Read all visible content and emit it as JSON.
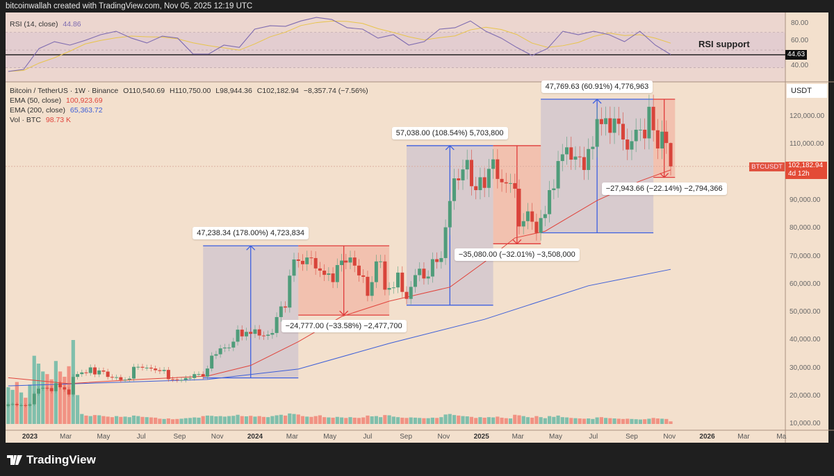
{
  "header": {
    "text": "bitcoinwallah created with TradingView.com, Nov 05, 2025 12:19 UTC"
  },
  "rsi": {
    "label": "RSI (14, close)",
    "value": "44.86",
    "support_label": "RSI support",
    "support_level": 44.63,
    "support_tag": "44.63",
    "axis_ticks": [
      "80.00",
      "60.00",
      "40.00"
    ],
    "axis_values": [
      80,
      60,
      40
    ],
    "color": "#7e6bb0",
    "ma_color": "#e8c44a",
    "values": [
      25.7,
      28,
      51.7,
      59.5,
      55.6,
      61,
      67.4,
      71.3,
      63.5,
      58,
      65.8,
      63.5,
      45.4,
      45.4,
      55.6,
      53,
      73.7,
      77.6,
      76.9,
      83,
      87,
      84.7,
      75.3,
      73.7,
      63.5,
      67.4,
      55.6,
      59.5,
      73.7,
      75.3,
      83,
      71.3,
      63.5,
      53,
      43.8,
      51.7,
      71.3,
      67.4,
      71.3,
      67.4,
      59.5,
      71.3,
      55.6,
      44.86
    ]
  },
  "legend": {
    "symbol": "Bitcoin / TetherUS · 1W · Binance",
    "open": "O110,540.69",
    "high": "H110,750.00",
    "low": "L98,944.36",
    "close": "C102,182.94",
    "change": "−8,357.74 (−7.56%)",
    "ema50_label": "EMA (50, close)",
    "ema50_value": "100,923.69",
    "ema200_label": "EMA (200, close)",
    "ema200_value": "65,363.72",
    "vol_label": "Vol · BTC",
    "vol_value": "98.73 K"
  },
  "price_axis": {
    "currency": "USDT",
    "symbol_tag": "BTCUSDT",
    "last_price": "102,182.94",
    "countdown": "4d 12h",
    "ticks": [
      "120,000.00",
      "110,000.00",
      "90,000.00",
      "80,000.00",
      "70,000.00",
      "60,000.00",
      "50,000.00",
      "40,000.00",
      "30,000.00",
      "20,000.00",
      "10,000.00"
    ],
    "tick_values": [
      120000,
      110000,
      90000,
      80000,
      70000,
      60000,
      50000,
      40000,
      30000,
      20000,
      10000
    ]
  },
  "colors": {
    "up": "#4f9c7a",
    "down": "#d8443a",
    "ema50": "#e0443c",
    "ema200": "#3c5ed8",
    "measure_up": "#3d5fe0",
    "measure_down": "#e03a3a",
    "background": "#f3e0cd"
  },
  "chart_data": {
    "type": "candlestick",
    "interval": "1W",
    "first_week": "2022-11-28",
    "first_open": 16450,
    "last_candle": {
      "open": 110540.69,
      "high": 110750.0,
      "low": 98944.36,
      "close": 102182.94
    },
    "close": [
      17100,
      17200,
      16800,
      16800,
      16600,
      17100,
      20900,
      22700,
      23000,
      22900,
      21800,
      24600,
      23200,
      22400,
      20600,
      26900,
      27900,
      28500,
      28300,
      30300,
      27800,
      29200,
      28800,
      26900,
      26700,
      26800,
      25800,
      25900,
      26300,
      30500,
      30500,
      30200,
      30200,
      29900,
      29300,
      29000,
      29400,
      26100,
      26000,
      25800,
      25800,
      26500,
      26500,
      27900,
      27900,
      27000,
      29900,
      34500,
      35000,
      37100,
      37400,
      37400,
      39500,
      43800,
      41400,
      43000,
      42300,
      43900,
      41700,
      41600,
      42000,
      42600,
      48300,
      52100,
      51700,
      63100,
      68900,
      68400,
      67200,
      69600,
      69400,
      65700,
      64900,
      63400,
      63900,
      60800,
      66900,
      68500,
      67800,
      69600,
      66700,
      63200,
      62700,
      55900,
      60800,
      68200,
      68200,
      58100,
      58700,
      58900,
      64200,
      57300,
      54800,
      59100,
      63300,
      65600,
      62100,
      62800,
      69000,
      68000,
      69400,
      80400,
      89800,
      97900,
      97200,
      101100,
      104500,
      95100,
      93700,
      98300,
      94500,
      101300,
      104700,
      97700,
      96500,
      96100,
      96200,
      94200,
      80700,
      82600,
      86100,
      82400,
      78400,
      83700,
      85100,
      93700,
      94300,
      104100,
      106500,
      109000,
      104600,
      105700,
      105500,
      100900,
      108400,
      109200,
      119100,
      117300,
      119400,
      114200,
      119300,
      117400,
      111800,
      108200,
      111200,
      115300,
      115300,
      112200,
      123500,
      115100,
      108600,
      114600,
      110540.69,
      102182.94
    ],
    "volume_k": [
      1400,
      1300,
      1600,
      1200,
      1000,
      1500,
      2600,
      2300,
      2000,
      1900,
      1700,
      2400,
      2000,
      1800,
      2200,
      3200,
      1100,
      380,
      320,
      300,
      340,
      330,
      300,
      280,
      260,
      300,
      270,
      280,
      260,
      320,
      300,
      270,
      260,
      250,
      240,
      200,
      190,
      210,
      180,
      190,
      200,
      220,
      230,
      250,
      240,
      300,
      320,
      310,
      290,
      300,
      280,
      300,
      310,
      350,
      300,
      290,
      310,
      280,
      300,
      270,
      260,
      300,
      330,
      350,
      320,
      400,
      380,
      360,
      300,
      280,
      270,
      300,
      330,
      260,
      250,
      240,
      270,
      250,
      230,
      260,
      240,
      230,
      250,
      320,
      290,
      300,
      260,
      340,
      330,
      280,
      260,
      240,
      230,
      250,
      240,
      230,
      220,
      220,
      240,
      230,
      260,
      360,
      380,
      340,
      320,
      300,
      290,
      270,
      230,
      260,
      240,
      260,
      250,
      280,
      240,
      220,
      210,
      350,
      330,
      300,
      260,
      240,
      300,
      260,
      220,
      300,
      270,
      320,
      260,
      250,
      230,
      220,
      210,
      200,
      210,
      190,
      250,
      260,
      230,
      220,
      210,
      200,
      190,
      200,
      190,
      180,
      170,
      180,
      200,
      230,
      210,
      200,
      190,
      98.73
    ],
    "ema50": [
      [
        "2022-11-28",
        26600
      ],
      [
        "2023-03-06",
        24500
      ],
      [
        "2023-06-26",
        26000
      ],
      [
        "2023-10-16",
        27200
      ],
      [
        "2023-12-25",
        31000
      ],
      [
        "2024-03-11",
        39500
      ],
      [
        "2024-05-20",
        48500
      ],
      [
        "2024-08-05",
        54000
      ],
      [
        "2024-11-11",
        59000
      ],
      [
        "2025-01-06",
        68000
      ],
      [
        "2025-02-24",
        76600
      ],
      [
        "2025-04-14",
        79000
      ],
      [
        "2025-07-07",
        90000
      ],
      [
        "2025-09-15",
        97000
      ],
      [
        "2025-11-03",
        100923.69
      ]
    ],
    "ema200": [
      [
        "2022-11-28",
        23700
      ],
      [
        "2023-10-16",
        26000
      ],
      [
        "2024-03-11",
        29700
      ],
      [
        "2024-08-05",
        38900
      ],
      [
        "2025-01-06",
        47500
      ],
      [
        "2025-06-23",
        59500
      ],
      [
        "2025-11-03",
        65363.72
      ]
    ],
    "measurements": [
      {
        "dir": "up",
        "from": "2023-10-09",
        "to": "2024-03-11",
        "low": 26536,
        "high": 73775,
        "label": "47,238.34 (178.00%) 4,723,834"
      },
      {
        "dir": "down",
        "from": "2024-03-11",
        "to": "2024-08-05",
        "low": 48998,
        "high": 73775,
        "label": "−24,777.00 (−33.58%) −2,477,700"
      },
      {
        "dir": "up",
        "from": "2024-09-02",
        "to": "2025-01-20",
        "low": 52550,
        "high": 109588,
        "label": "57,038.00 (108.54%) 5,703,800"
      },
      {
        "dir": "down",
        "from": "2025-01-20",
        "to": "2025-04-07",
        "low": 74508,
        "high": 109588,
        "label": "−35,080.00 (−32.01%) −3,508,000"
      },
      {
        "dir": "up",
        "from": "2025-04-07",
        "to": "2025-10-06",
        "low": 78430,
        "high": 126200,
        "label": "47,769.63 (60.91%) 4,776,963"
      },
      {
        "dir": "down",
        "from": "2025-10-06",
        "to": "2025-11-10",
        "low": 98256,
        "high": 126200,
        "label": "−27,943.66 (−22.14%) −2,794,366"
      }
    ],
    "x_ticks": [
      [
        "2023",
        "2023-01-02",
        true
      ],
      [
        "Mar",
        "2023-03-01",
        false
      ],
      [
        "May",
        "2023-05-01",
        false
      ],
      [
        "Jul",
        "2023-07-01",
        false
      ],
      [
        "Sep",
        "2023-09-01",
        false
      ],
      [
        "Nov",
        "2023-11-01",
        false
      ],
      [
        "2024",
        "2024-01-01",
        true
      ],
      [
        "Mar",
        "2024-03-01",
        false
      ],
      [
        "May",
        "2024-05-01",
        false
      ],
      [
        "Jul",
        "2024-07-01",
        false
      ],
      [
        "Sep",
        "2024-09-01",
        false
      ],
      [
        "Nov",
        "2024-11-01",
        false
      ],
      [
        "2025",
        "2025-01-01",
        true
      ],
      [
        "Mar",
        "2025-03-01",
        false
      ],
      [
        "May",
        "2025-05-01",
        false
      ],
      [
        "Jul",
        "2025-07-01",
        false
      ],
      [
        "Sep",
        "2025-09-01",
        false
      ],
      [
        "Nov",
        "2025-11-01",
        false
      ],
      [
        "2026",
        "2026-01-01",
        true
      ],
      [
        "Mar",
        "2026-03-01",
        false
      ],
      [
        "Ma",
        "2026-05-01",
        false
      ]
    ]
  },
  "footer": {
    "brand": "TradingView"
  }
}
